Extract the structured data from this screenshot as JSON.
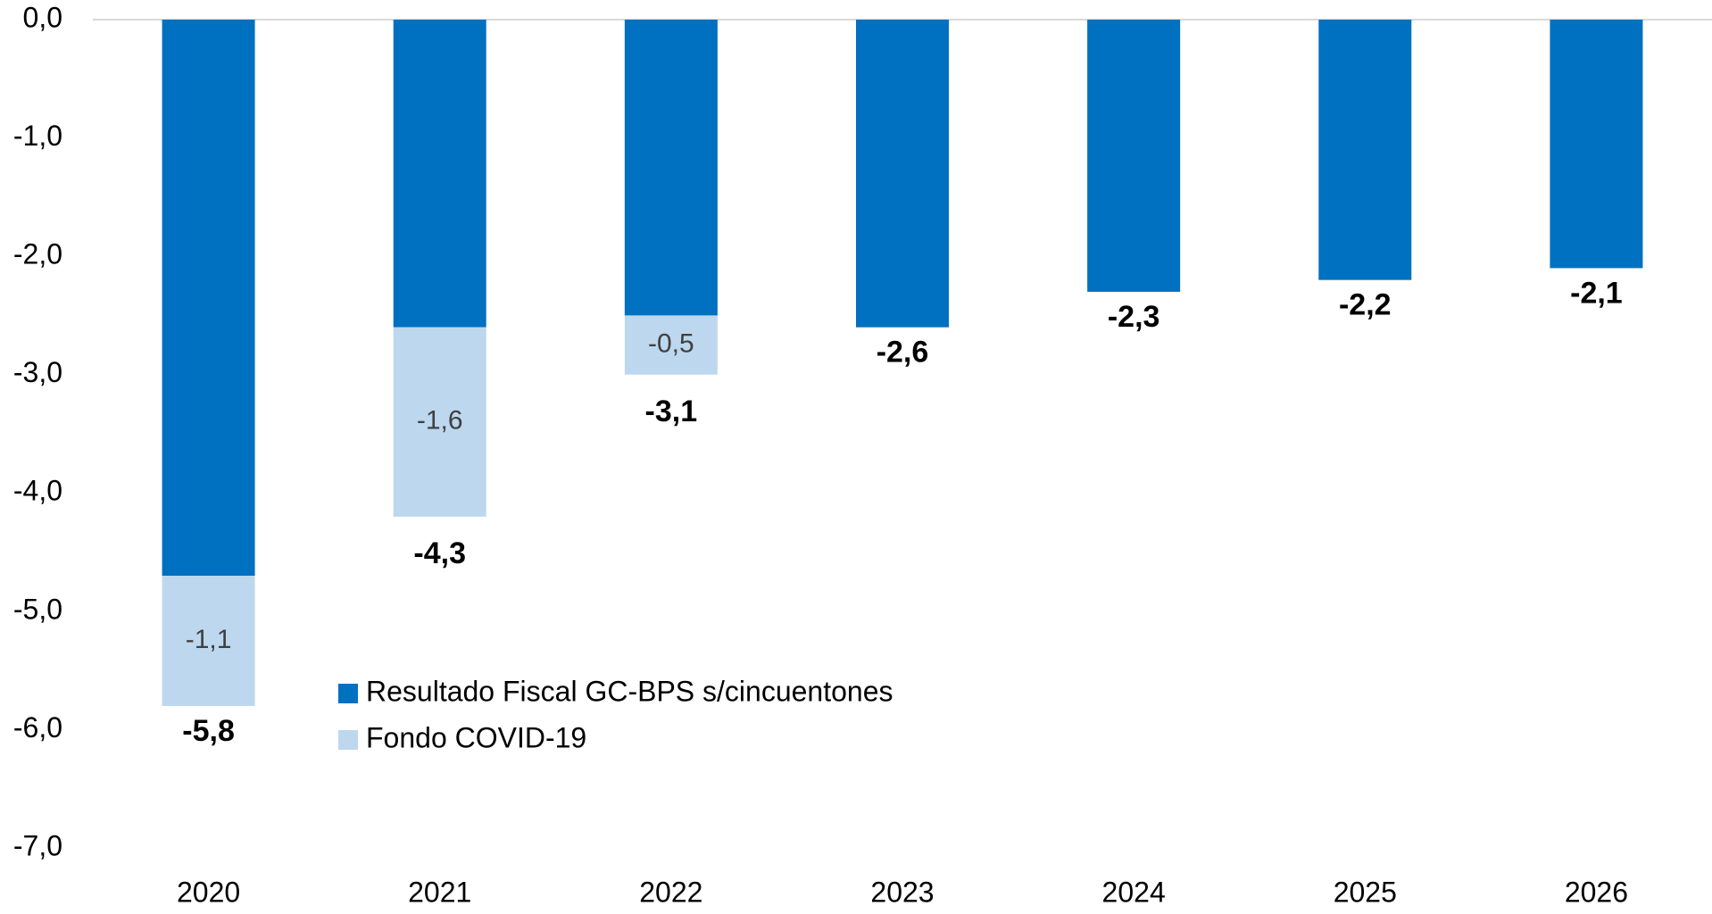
{
  "chart_data": {
    "type": "bar",
    "stacked": true,
    "categories": [
      "2020",
      "2021",
      "2022",
      "2023",
      "2024",
      "2025",
      "2026"
    ],
    "series": [
      {
        "name": "Resultado Fiscal GC-BPS s/cincuentones",
        "color": "#0070c0",
        "values": [
          -4.7,
          -2.6,
          -2.5,
          -2.6,
          -2.3,
          -2.2,
          -2.1
        ]
      },
      {
        "name": "Fondo COVID-19",
        "color": "#bdd7ee",
        "values": [
          -1.1,
          -1.6,
          -0.5,
          null,
          null,
          null,
          null
        ],
        "value_labels": [
          "-1,1",
          "-1,6",
          "-0,5",
          null,
          null,
          null,
          null
        ]
      }
    ],
    "totals": [
      -5.8,
      -4.3,
      -3.1,
      -2.6,
      -2.3,
      -2.2,
      -2.1
    ],
    "total_labels": [
      "-5,8",
      "-4,3",
      "-3,1",
      "-2,6",
      "-2,3",
      "-2,2",
      "-2,1"
    ],
    "ylim": [
      -7,
      0
    ],
    "yticks": [
      {
        "value": 0,
        "label": "0,0"
      },
      {
        "value": -1,
        "label": "-1,0"
      },
      {
        "value": -2,
        "label": "-2,0"
      },
      {
        "value": -3,
        "label": "-3,0"
      },
      {
        "value": -4,
        "label": "-4,0"
      },
      {
        "value": -5,
        "label": "-5,0"
      },
      {
        "value": -6,
        "label": "-6,0"
      },
      {
        "value": -7,
        "label": "-7,0"
      }
    ],
    "legend": "lower-center"
  }
}
